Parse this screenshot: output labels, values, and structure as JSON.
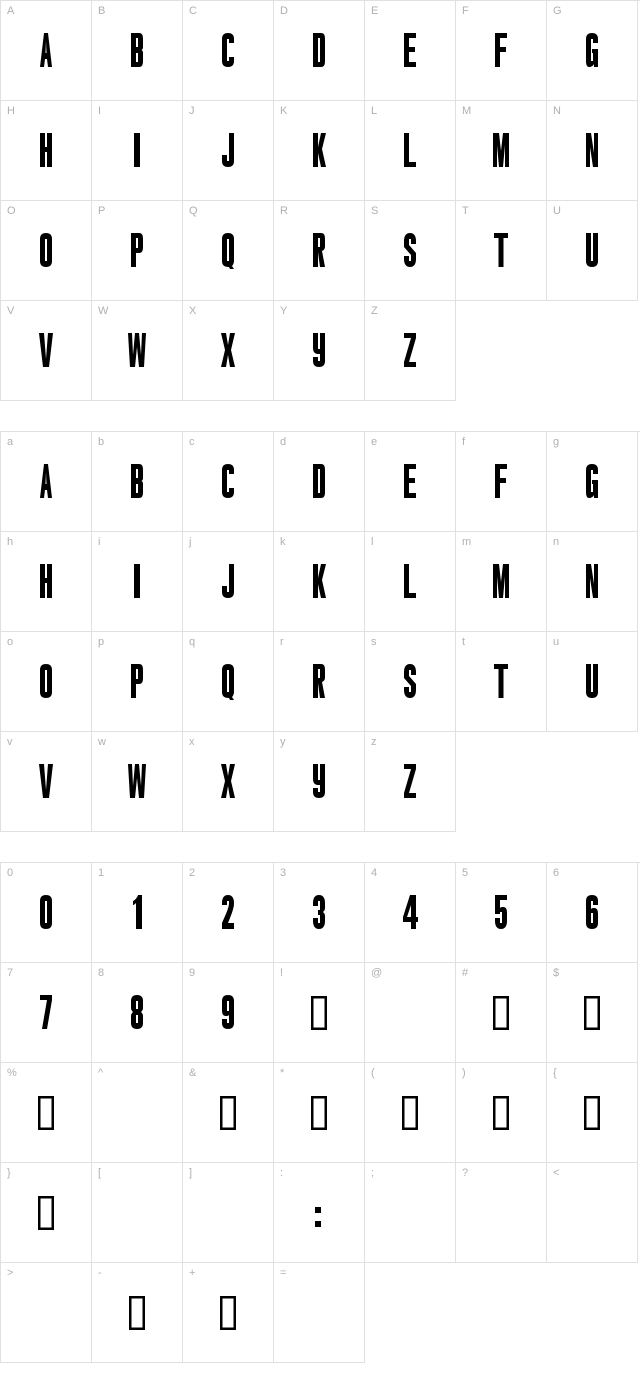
{
  "glyph_style": {
    "fill_color": "#000000",
    "stroke_color": "#000000",
    "label_color": "#b0b0b0",
    "cell_border_color": "#e0e0e0",
    "background_color": "#ffffff",
    "glyph_height": 34,
    "glyph_width_narrow": 12,
    "glyph_width_wide": 20,
    "label_fontsize": 11
  },
  "sections": [
    {
      "id": "uppercase",
      "cells": [
        {
          "label": "A",
          "glyph": "A",
          "box": false
        },
        {
          "label": "B",
          "glyph": "B",
          "box": false
        },
        {
          "label": "C",
          "glyph": "C",
          "box": false
        },
        {
          "label": "D",
          "glyph": "D",
          "box": false
        },
        {
          "label": "E",
          "glyph": "E",
          "box": false
        },
        {
          "label": "F",
          "glyph": "F",
          "box": false
        },
        {
          "label": "G",
          "glyph": "G",
          "box": false
        },
        {
          "label": "H",
          "glyph": "H",
          "box": false
        },
        {
          "label": "I",
          "glyph": "I",
          "box": false
        },
        {
          "label": "J",
          "glyph": "J",
          "box": false
        },
        {
          "label": "K",
          "glyph": "K",
          "box": false
        },
        {
          "label": "L",
          "glyph": "L",
          "box": false
        },
        {
          "label": "M",
          "glyph": "M",
          "box": false
        },
        {
          "label": "N",
          "glyph": "N",
          "box": false
        },
        {
          "label": "O",
          "glyph": "O",
          "box": false
        },
        {
          "label": "P",
          "glyph": "P",
          "box": false
        },
        {
          "label": "Q",
          "glyph": "Q",
          "box": false
        },
        {
          "label": "R",
          "glyph": "R",
          "box": false
        },
        {
          "label": "S",
          "glyph": "S",
          "box": false
        },
        {
          "label": "T",
          "glyph": "T",
          "box": false
        },
        {
          "label": "U",
          "glyph": "U",
          "box": false
        },
        {
          "label": "V",
          "glyph": "V",
          "box": false
        },
        {
          "label": "W",
          "glyph": "W",
          "box": false
        },
        {
          "label": "X",
          "glyph": "X",
          "box": false
        },
        {
          "label": "Y",
          "glyph": "Y",
          "box": false
        },
        {
          "label": "Z",
          "glyph": "Z",
          "box": false
        }
      ]
    },
    {
      "id": "lowercase",
      "cells": [
        {
          "label": "a",
          "glyph": "A",
          "box": false
        },
        {
          "label": "b",
          "glyph": "B",
          "box": false
        },
        {
          "label": "c",
          "glyph": "C",
          "box": false
        },
        {
          "label": "d",
          "glyph": "D",
          "box": false
        },
        {
          "label": "e",
          "glyph": "E",
          "box": false
        },
        {
          "label": "f",
          "glyph": "F",
          "box": false
        },
        {
          "label": "g",
          "glyph": "G",
          "box": false
        },
        {
          "label": "h",
          "glyph": "H",
          "box": false
        },
        {
          "label": "i",
          "glyph": "I",
          "box": false
        },
        {
          "label": "j",
          "glyph": "J",
          "box": false
        },
        {
          "label": "k",
          "glyph": "K",
          "box": false
        },
        {
          "label": "l",
          "glyph": "L",
          "box": false
        },
        {
          "label": "m",
          "glyph": "M",
          "box": false
        },
        {
          "label": "n",
          "glyph": "N",
          "box": false
        },
        {
          "label": "o",
          "glyph": "O",
          "box": false
        },
        {
          "label": "p",
          "glyph": "P",
          "box": false
        },
        {
          "label": "q",
          "glyph": "Q",
          "box": false
        },
        {
          "label": "r",
          "glyph": "R",
          "box": false
        },
        {
          "label": "s",
          "glyph": "S",
          "box": false
        },
        {
          "label": "t",
          "glyph": "T",
          "box": false
        },
        {
          "label": "u",
          "glyph": "U",
          "box": false
        },
        {
          "label": "v",
          "glyph": "V",
          "box": false
        },
        {
          "label": "w",
          "glyph": "W",
          "box": false
        },
        {
          "label": "x",
          "glyph": "X",
          "box": false
        },
        {
          "label": "y",
          "glyph": "Y",
          "box": false
        },
        {
          "label": "z",
          "glyph": "Z",
          "box": false
        }
      ]
    },
    {
      "id": "symbols",
      "cells": [
        {
          "label": "0",
          "glyph": "0",
          "box": false
        },
        {
          "label": "1",
          "glyph": "1",
          "box": false
        },
        {
          "label": "2",
          "glyph": "2",
          "box": false
        },
        {
          "label": "3",
          "glyph": "3",
          "box": false
        },
        {
          "label": "4",
          "glyph": "4",
          "box": false
        },
        {
          "label": "5",
          "glyph": "5",
          "box": false
        },
        {
          "label": "6",
          "glyph": "6",
          "box": false
        },
        {
          "label": "7",
          "glyph": "7",
          "box": false
        },
        {
          "label": "8",
          "glyph": "8",
          "box": false
        },
        {
          "label": "9",
          "glyph": "9",
          "box": false
        },
        {
          "label": "!",
          "glyph": "",
          "box": true
        },
        {
          "label": "@",
          "glyph": "",
          "box": false,
          "empty": true
        },
        {
          "label": "#",
          "glyph": "",
          "box": true
        },
        {
          "label": "$",
          "glyph": "",
          "box": true
        },
        {
          "label": "%",
          "glyph": "",
          "box": true
        },
        {
          "label": "^",
          "glyph": "",
          "box": false,
          "empty": true
        },
        {
          "label": "&",
          "glyph": "",
          "box": true
        },
        {
          "label": "*",
          "glyph": "",
          "box": true
        },
        {
          "label": "(",
          "glyph": "",
          "box": true
        },
        {
          "label": ")",
          "glyph": "",
          "box": true
        },
        {
          "label": "{",
          "glyph": "",
          "box": true
        },
        {
          "label": "}",
          "glyph": "",
          "box": true
        },
        {
          "label": "[",
          "glyph": "",
          "box": false,
          "empty": true
        },
        {
          "label": "]",
          "glyph": "",
          "box": false,
          "empty": true
        },
        {
          "label": ":",
          "glyph": ":",
          "box": false
        },
        {
          "label": ";",
          "glyph": "",
          "box": false,
          "empty": true
        },
        {
          "label": "?",
          "glyph": "",
          "box": false,
          "empty": true
        },
        {
          "label": "<",
          "glyph": "",
          "box": false,
          "empty": true
        },
        {
          "label": ">",
          "glyph": "",
          "box": false,
          "empty": true
        },
        {
          "label": "-",
          "glyph": "",
          "box": true
        },
        {
          "label": "+",
          "glyph": "",
          "box": true
        },
        {
          "label": "=",
          "glyph": "",
          "box": false,
          "empty": true
        }
      ]
    }
  ]
}
